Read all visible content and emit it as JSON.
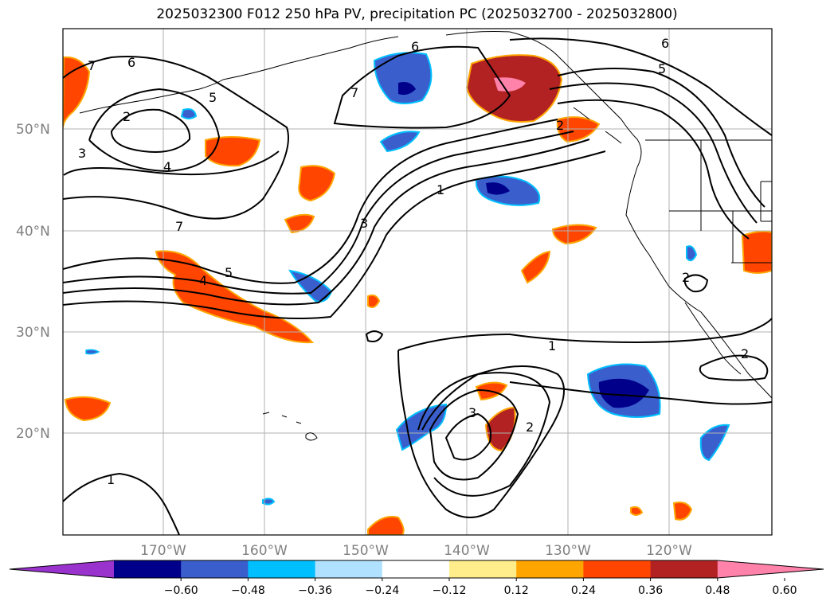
{
  "title": "2025032300 F012 250 hPa PV, precipitation PC (2025032700 - 2025032800)",
  "latitude_labels": [
    "50°N",
    "40°N",
    "30°N",
    "20°N"
  ],
  "longitude_labels": [
    "170°W",
    "160°W",
    "150°W",
    "140°W",
    "130°W",
    "120°W"
  ],
  "pv_contour_labels": [
    "7",
    "6",
    "6",
    "6",
    "5",
    "5",
    "2",
    "3",
    "4",
    "7",
    "7",
    "1",
    "3",
    "5",
    "4",
    "2",
    "2",
    "1",
    "3",
    "2",
    "1",
    "2"
  ],
  "colorbar": {
    "ticks": [
      "−0.60",
      "−0.48",
      "−0.36",
      "−0.24",
      "−0.12",
      "0.12",
      "0.24",
      "0.36",
      "0.48",
      "0.60"
    ],
    "colors": [
      "#9a32cd",
      "#00008b",
      "#3a5fcd",
      "#00bfff",
      "#b0e2ff",
      "#ffffff",
      "#ffec8b",
      "#ffa500",
      "#ff4500",
      "#b22222",
      "#ff82ab"
    ]
  },
  "colors": {
    "land_outline": "#000000",
    "grid": "#b0b0b0",
    "contour": "#000000"
  }
}
